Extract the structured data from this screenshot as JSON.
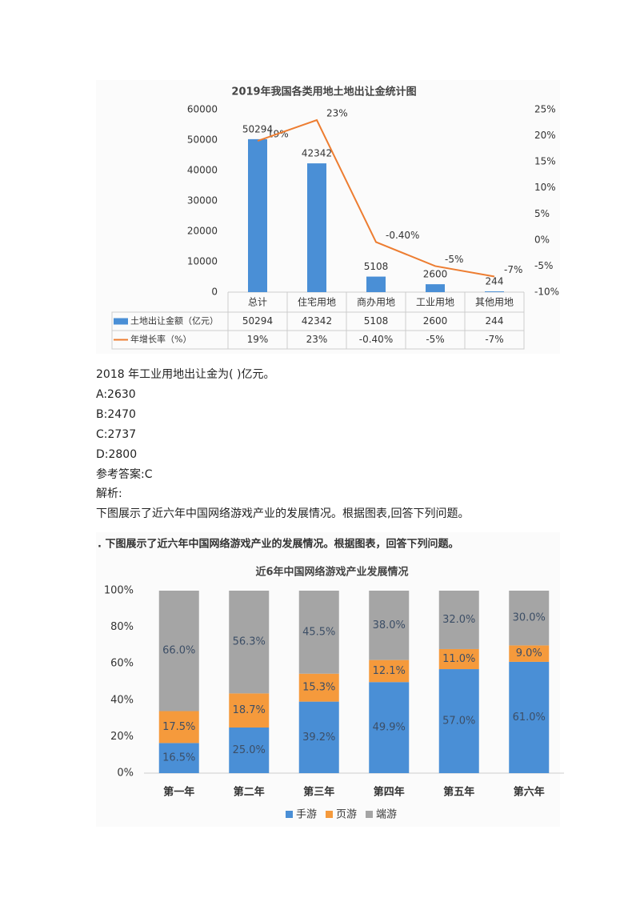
{
  "chart_data": [
    {
      "type": "bar_line",
      "title": "2019年我国各类用地土地出让金统计图",
      "categories": [
        "总计",
        "住宅用地",
        "商办用地",
        "工业用地",
        "其他用地"
      ],
      "series": [
        {
          "name": "土地出让金额（亿元）",
          "color": "#4a8fd6",
          "values": [
            50294,
            42342,
            5108,
            2600,
            244
          ]
        },
        {
          "name": "年增长率（%）",
          "color": "#ed7d31",
          "axis": "y2",
          "values": [
            19,
            23,
            -0.4,
            -5,
            -7
          ],
          "value_labels": [
            "19%",
            "23%",
            "-0.40%",
            "-5%",
            "-7%"
          ]
        }
      ],
      "ylim": [
        0,
        60000
      ],
      "yticks": [
        0,
        10000,
        20000,
        30000,
        40000,
        50000,
        60000
      ],
      "y2lim": [
        -10,
        25
      ],
      "y2ticks": [
        {
          "value": -10,
          "label": "-10%"
        },
        {
          "value": -5,
          "label": "-5%"
        },
        {
          "value": 0,
          "label": "0%"
        },
        {
          "value": 5,
          "label": "5%"
        },
        {
          "value": 10,
          "label": "10%"
        },
        {
          "value": 15,
          "label": "15%"
        },
        {
          "value": 20,
          "label": "20%"
        },
        {
          "value": 25,
          "label": "25%"
        }
      ],
      "grid": false
    },
    {
      "type": "stacked_bar",
      "caption": ". 下图展示了近六年中国网络游戏产业的发展情况。根据图表，回答下列问题。",
      "title": "近6年中国网络游戏产业发展情况",
      "categories": [
        "第一年",
        "第二年",
        "第三年",
        "第四年",
        "第五年",
        "第六年"
      ],
      "series": [
        {
          "name": "手游",
          "color": "#4a8fd6",
          "values": [
            16.5,
            25.0,
            39.2,
            49.9,
            57.0,
            61.0
          ],
          "value_labels": [
            "16.5%",
            "25.0%",
            "39.2%",
            "49.9%",
            "57.0%",
            "61.0%"
          ]
        },
        {
          "name": "页游",
          "color": "#f59a3c",
          "values": [
            17.5,
            18.7,
            15.3,
            12.1,
            11.0,
            9.0
          ],
          "value_labels": [
            "17.5%",
            "18.7%",
            "15.3%",
            "12.1%",
            "11.0%",
            "9.0%"
          ]
        },
        {
          "name": "端游",
          "color": "#a5a5a5",
          "values": [
            66.0,
            56.3,
            45.5,
            38.0,
            32.0,
            30.0
          ],
          "value_labels": [
            "66.0%",
            "56.3%",
            "45.5%",
            "38.0%",
            "32.0%",
            "30.0%"
          ]
        }
      ],
      "ylim": [
        0,
        100
      ],
      "yticks": [
        {
          "value": 0,
          "label": "0%"
        },
        {
          "value": 20,
          "label": "20%"
        },
        {
          "value": 40,
          "label": "40%"
        },
        {
          "value": 60,
          "label": "60%"
        },
        {
          "value": 80,
          "label": "80%"
        },
        {
          "value": 100,
          "label": "100%"
        }
      ],
      "grid": false
    }
  ],
  "question": {
    "stem": "2018 年工业用地出让金为( )亿元。",
    "options": [
      "A:2630",
      "B:2470",
      "C:2737",
      "D:2800"
    ],
    "answer": "参考答案:C",
    "analysis": "解析:",
    "next_intro": "下图展示了近六年中国网络游戏产业的发展情况。根据图表,回答下列问题。"
  }
}
